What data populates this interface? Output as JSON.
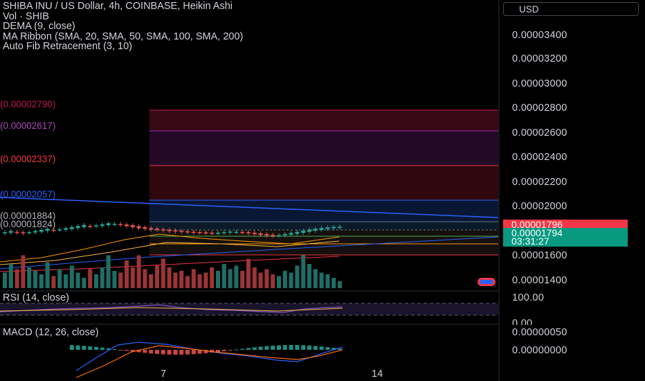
{
  "legend": {
    "title": "SHIBA INU / US Dollar, 4h, COINBASE, Heikin Ashi",
    "volume": "Vol · SHIB",
    "dema": "DEMA (9, close)",
    "ma_ribbon": "MA Ribbon (SMA, 20, SMA, 50, SMA, 100, SMA, 200)",
    "fib": "Auto Fib Retracement (3, 10)"
  },
  "currency_button": "USD",
  "colors": {
    "up": "#26a69a",
    "down": "#ef5350",
    "price_tag": "#f23645",
    "countdown_tag": "#089981",
    "trendline": "#2962ff",
    "ma_fast": "#ff9800",
    "ma_slow": "#f23645"
  },
  "price_axis": [
    "0.00003400",
    "0.00003200",
    "0.00003000",
    "0.00002800",
    "0.00002600",
    "0.00002400",
    "0.00002200",
    "0.00002000",
    "0.00001600",
    "0.00001400"
  ],
  "current_price": "0.00001796",
  "last_close": "0.00001794",
  "countdown": "03:31:27",
  "fib_labels": [
    "(0.00002790)",
    "(0.00002617)",
    "(0.00002337)",
    "(0.00002057)",
    "(0.00001884)",
    "(0.00001824)"
  ],
  "rsi": {
    "label": "RSI (14, close)",
    "axis_top": "100.00",
    "axis_bottom": "0.00"
  },
  "macd": {
    "label": "MACD (12, 26, close)",
    "axis_top": "0.00000050",
    "axis_bottom": "0.00000000"
  },
  "time_axis": [
    "7",
    "14"
  ],
  "chart_data": {
    "type": "candlestick",
    "title": "SHIBA INU / US Dollar, 4h, COINBASE, Heikin Ashi",
    "ylim": [
      1.31e-05,
      3.52e-05
    ],
    "fib_levels": [
      2.79e-05,
      2.617e-05,
      2.337e-05,
      2.057e-05,
      1.884e-05,
      1.824e-05
    ],
    "closes": [
      1.745e-05,
      1.755e-05,
      1.74e-05,
      1.735e-05,
      1.745e-05,
      1.755e-05,
      1.765e-05,
      1.775e-05,
      1.76e-05,
      1.77e-05,
      1.78e-05,
      1.79e-05,
      1.8e-05,
      1.81e-05,
      1.795e-05,
      1.805e-05,
      1.815e-05,
      1.825e-05,
      1.82e-05,
      1.81e-05,
      1.8e-05,
      1.79e-05,
      1.78e-05,
      1.775e-05,
      1.77e-05,
      1.765e-05,
      1.76e-05,
      1.755e-05,
      1.752e-05,
      1.748e-05,
      1.745e-05,
      1.742e-05,
      1.74e-05,
      1.738e-05,
      1.735e-05,
      1.74e-05,
      1.745e-05,
      1.75e-05,
      1.748e-05,
      1.742e-05,
      1.735e-05,
      1.728e-05,
      1.72e-05,
      1.715e-05,
      1.71e-05,
      1.718e-05,
      1.728e-05,
      1.738e-05,
      1.748e-05,
      1.758e-05,
      1.768e-05,
      1.775e-05,
      1.782e-05,
      1.788e-05,
      1.792e-05,
      1.794e-05
    ],
    "volumes": [
      0.45,
      0.7,
      0.55,
      0.95,
      0.6,
      0.5,
      0.4,
      0.75,
      0.35,
      0.55,
      0.4,
      0.65,
      0.45,
      0.3,
      0.55,
      0.4,
      0.6,
      0.95,
      0.5,
      0.45,
      0.8,
      0.6,
      0.95,
      0.55,
      0.4,
      0.65,
      0.85,
      0.6,
      0.45,
      0.5,
      0.35,
      0.55,
      0.4,
      0.45,
      0.6,
      0.5,
      0.7,
      0.55,
      0.65,
      0.5,
      0.85,
      0.6,
      0.45,
      0.55,
      0.4,
      0.35,
      0.5,
      0.45,
      0.65,
      0.95,
      0.7,
      0.55,
      0.45,
      0.4,
      0.3,
      0.2
    ]
  }
}
